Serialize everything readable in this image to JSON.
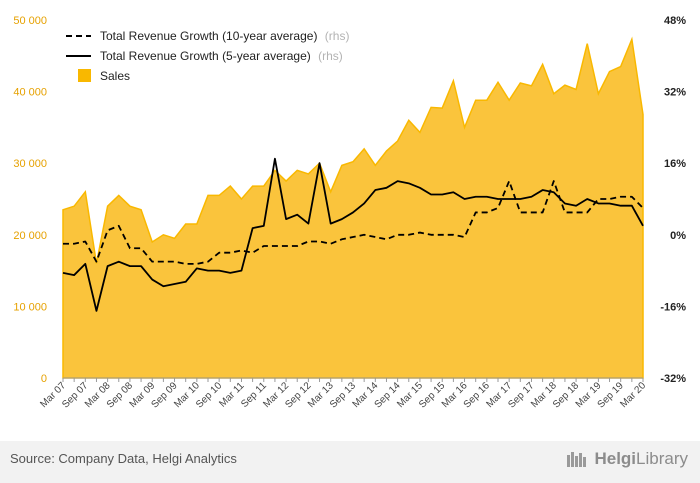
{
  "footer": {
    "source": "Source: Company Data, Helgi Analytics",
    "brand_name": "Helgi",
    "brand_suffix": "Library"
  },
  "chart_data": {
    "type": "area",
    "title": "",
    "xlabel": "",
    "ylabel": "",
    "ylim_left": [
      0,
      50000
    ],
    "ylim_right": [
      -32,
      48
    ],
    "left_ticks": [
      "0",
      "10 000",
      "20 000",
      "30 000",
      "40 000",
      "50 000"
    ],
    "right_ticks": [
      "-32%",
      "-16%",
      "0%",
      "16%",
      "32%",
      "48%"
    ],
    "x_tick_labels": [
      "Mar 07",
      "Sep 07",
      "Mar 08",
      "Sep 08",
      "Mar 09",
      "Sep 09",
      "Mar 10",
      "Sep 10",
      "Mar 11",
      "Sep 11",
      "Mar 12",
      "Sep 12",
      "Mar 13",
      "Sep 13",
      "Mar 14",
      "Sep 14",
      "Mar 15",
      "Sep 15",
      "Mar 16",
      "Sep 16",
      "Mar 17",
      "Sep 17",
      "Mar 18",
      "Sep 18",
      "Mar 19",
      "Sep 19",
      "Mar 20"
    ],
    "quarters": [
      "Mar 07",
      "Jun 07",
      "Sep 07",
      "Dec 07",
      "Mar 08",
      "Jun 08",
      "Sep 08",
      "Dec 08",
      "Mar 09",
      "Jun 09",
      "Sep 09",
      "Dec 09",
      "Mar 10",
      "Jun 10",
      "Sep 10",
      "Dec 10",
      "Mar 11",
      "Jun 11",
      "Sep 11",
      "Dec 11",
      "Mar 12",
      "Jun 12",
      "Sep 12",
      "Dec 12",
      "Mar 13",
      "Jun 13",
      "Sep 13",
      "Dec 13",
      "Mar 14",
      "Jun 14",
      "Sep 14",
      "Dec 14",
      "Mar 15",
      "Jun 15",
      "Sep 15",
      "Dec 15",
      "Mar 16",
      "Jun 16",
      "Sep 16",
      "Dec 16",
      "Mar 17",
      "Jun 17",
      "Sep 17",
      "Dec 17",
      "Mar 18",
      "Jun 18",
      "Sep 18",
      "Dec 18",
      "Mar 19",
      "Jun 19",
      "Sep 19",
      "Dec 19",
      "Mar 20"
    ],
    "legend_position": "top-left",
    "grid": false,
    "colors": {
      "sales": "#f9b800",
      "sales_fill": "#fac43c",
      "lines": "#000000",
      "left_axis": "#e6a100"
    },
    "series": [
      {
        "name": "Total Revenue Growth (10-year average)",
        "legend_suffix": "(rhs)",
        "axis": "right",
        "style": "dashed",
        "values": [
          -2.0,
          -2.0,
          -1.5,
          -6.0,
          1.0,
          2.0,
          -3.0,
          -3.0,
          -6.0,
          -6.0,
          -6.0,
          -6.5,
          -6.5,
          -6.0,
          -4.0,
          -4.0,
          -3.5,
          -4.0,
          -2.5,
          -2.5,
          -2.5,
          -2.5,
          -1.5,
          -1.5,
          -2.0,
          -1.0,
          -0.5,
          0.0,
          -0.5,
          -1.0,
          0.0,
          0.0,
          0.5,
          0.0,
          0.0,
          0.0,
          -0.5,
          5.0,
          5.0,
          6.0,
          12.0,
          5.0,
          5.0,
          5.0,
          12.0,
          5.0,
          5.0,
          5.0,
          8.0,
          8.0,
          8.5,
          8.5,
          6.0
        ]
      },
      {
        "name": "Total Revenue Growth (5-year average)",
        "legend_suffix": "(rhs)",
        "axis": "right",
        "style": "solid",
        "values": [
          -8.5,
          -9.0,
          -6.5,
          -17.0,
          -7.0,
          -6.0,
          -7.0,
          -7.0,
          -10.0,
          -11.5,
          -11.0,
          -10.5,
          -7.5,
          -8.0,
          -8.0,
          -8.5,
          -8.0,
          1.5,
          2.0,
          17.0,
          3.5,
          4.5,
          2.5,
          16.0,
          2.5,
          3.5,
          5.0,
          7.0,
          10.0,
          10.5,
          12.0,
          11.5,
          10.5,
          9.0,
          9.0,
          9.5,
          8.0,
          8.5,
          8.5,
          8.0,
          8.0,
          8.0,
          8.5,
          10.0,
          9.5,
          7.0,
          6.5,
          8.0,
          7.0,
          7.0,
          6.5,
          6.5,
          2.0
        ]
      },
      {
        "name": "Sales",
        "axis": "left",
        "style": "area",
        "values": [
          23500,
          24000,
          26000,
          16000,
          24000,
          25500,
          24000,
          23500,
          19000,
          20000,
          19500,
          21500,
          21500,
          25500,
          25500,
          26800,
          25000,
          26800,
          26800,
          29000,
          27500,
          29000,
          28500,
          30000,
          26000,
          29700,
          30200,
          32000,
          29700,
          31700,
          33100,
          36000,
          34300,
          37800,
          37700,
          41500,
          35000,
          38800,
          38800,
          41300,
          38800,
          41200,
          40800,
          43800,
          39700,
          40900,
          40300,
          46700,
          39700,
          42800,
          43500,
          47300,
          36800
        ]
      }
    ]
  }
}
